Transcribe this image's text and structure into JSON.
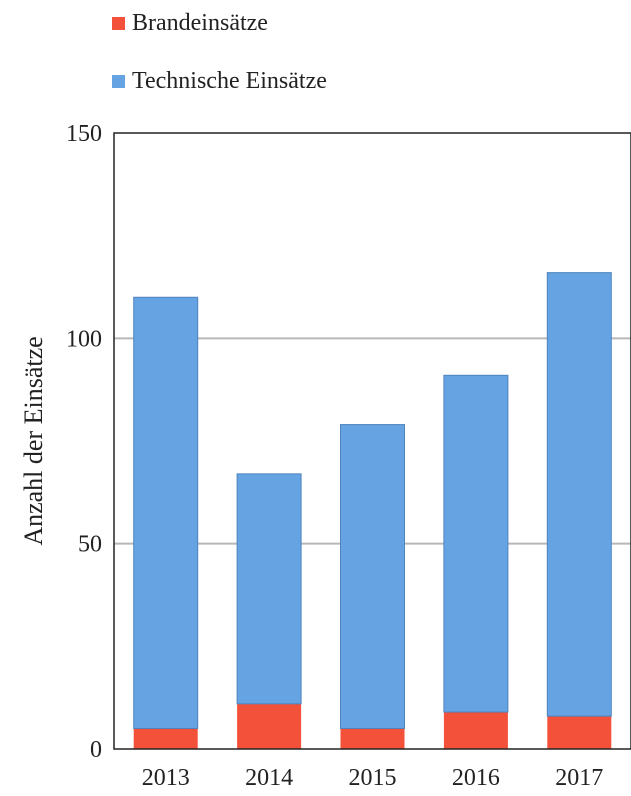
{
  "chart_data": {
    "type": "bar",
    "stacked": true,
    "categories": [
      "2013",
      "2014",
      "2015",
      "2016",
      "2017"
    ],
    "series": [
      {
        "name": "Brandeinsätze",
        "color": "#f4513a",
        "values": [
          5,
          11,
          5,
          9,
          8
        ]
      },
      {
        "name": "Technische Einsätze",
        "color": "#65a3e3",
        "values": [
          105,
          56,
          74,
          82,
          108
        ]
      }
    ],
    "title": "",
    "xlabel": "",
    "ylabel": "Anzahl der Einsätze",
    "ylim": [
      0,
      150
    ],
    "yticks": [
      "0",
      "50",
      "100",
      "150"
    ],
    "grid": true,
    "legend_position": "top-left"
  }
}
